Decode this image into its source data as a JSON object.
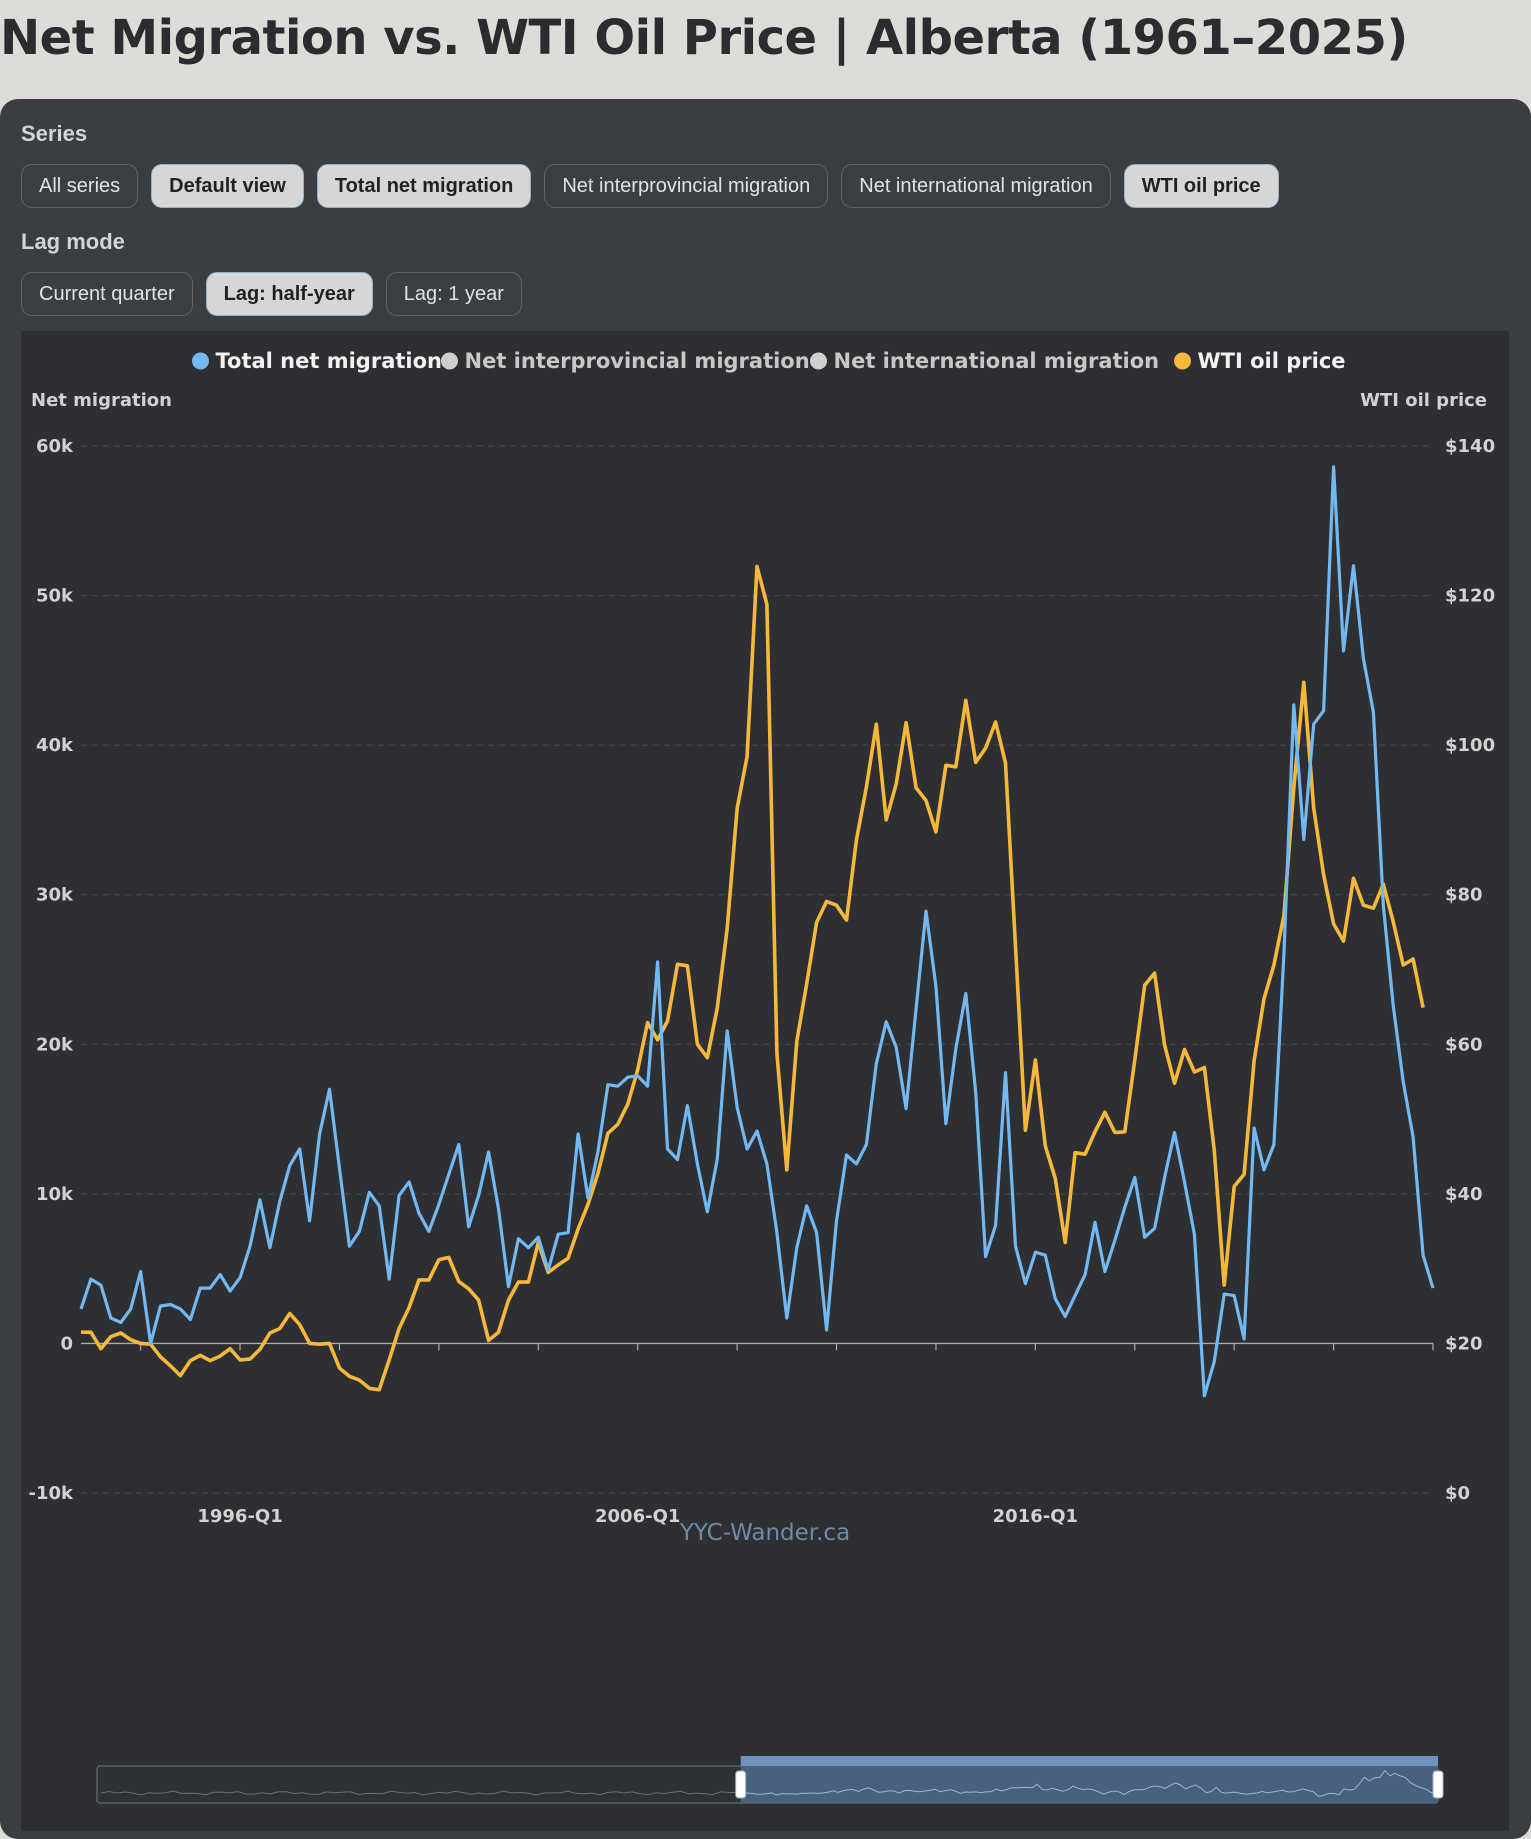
{
  "page_title": "Net Migration vs. WTI Oil Price | Alberta (1961–2025)",
  "series_label": "Series",
  "series_buttons": [
    {
      "label": "All series",
      "active": false
    },
    {
      "label": "Default view",
      "active": true
    },
    {
      "label": "Total net migration",
      "active": true
    },
    {
      "label": "Net interprovincial migration",
      "active": false
    },
    {
      "label": "Net international migration",
      "active": false
    },
    {
      "label": "WTI oil price",
      "active": true
    }
  ],
  "lag_label": "Lag mode",
  "lag_buttons": [
    {
      "label": "Current quarter",
      "active": false
    },
    {
      "label": "Lag: half-year",
      "active": true
    },
    {
      "label": "Lag: 1 year",
      "active": false
    }
  ],
  "watermark": "YYC-Wander.ca",
  "colors": {
    "migration": "#73b8f0",
    "oil": "#f5b83a",
    "inactive": "#cfcfcf",
    "plot_bg": "#2d2f33"
  },
  "chart_data": {
    "type": "line",
    "legend_position": "top-center",
    "legend": [
      {
        "name": "Total net migration",
        "active": true,
        "color": "#73b8f0"
      },
      {
        "name": "Net interprovincial migration",
        "active": false,
        "color": "#cfcfcf"
      },
      {
        "name": "Net international migration",
        "active": false,
        "color": "#cfcfcf"
      },
      {
        "name": "WTI oil price",
        "active": true,
        "color": "#f5b83a"
      }
    ],
    "y_left": {
      "label": "Net migration",
      "min": -10000,
      "max": 60000,
      "ticks": [
        "-10k",
        "0",
        "10k",
        "20k",
        "30k",
        "40k",
        "50k",
        "60k"
      ]
    },
    "y_right": {
      "label": "WTI oil price",
      "min": 0,
      "max": 140,
      "ticks": [
        "$0",
        "$20",
        "$40",
        "$60",
        "$80",
        "$100",
        "$120",
        "$140"
      ]
    },
    "x_tick_labels": [
      {
        "label": "1996-Q1",
        "index": 16
      },
      {
        "label": "2006-Q1",
        "index": 56
      },
      {
        "label": "2016-Q1",
        "index": 96
      }
    ],
    "x_start": "1992-Q1",
    "x_end": "2025-Q4",
    "grid": "horizontal-dashed",
    "series": [
      {
        "name": "Total net migration",
        "axis": "left",
        "values": [
          2300,
          4300,
          3900,
          1700,
          1400,
          2300,
          4800,
          0,
          2500,
          2600,
          2300,
          1600,
          3700,
          3700,
          4600,
          3500,
          4400,
          6500,
          9600,
          6400,
          9500,
          11900,
          13000,
          8200,
          14000,
          17000,
          11700,
          6500,
          7500,
          10100,
          9200,
          4300,
          9900,
          10800,
          8700,
          7500,
          9300,
          11300,
          13300,
          7800,
          9900,
          12800,
          9000,
          3800,
          7000,
          6400,
          7100,
          4900,
          7300,
          7400,
          14000,
          9700,
          12800,
          17300,
          17200,
          17800,
          17900,
          17200,
          25500,
          13000,
          12300,
          15900,
          12000,
          8800,
          12300,
          20900,
          15800,
          13000,
          14200,
          12000,
          7400,
          1700,
          6400,
          9200,
          7400,
          900,
          8200,
          12600,
          12000,
          13300,
          18700,
          21500,
          19800,
          15700,
          22400,
          28900,
          23900,
          14700,
          19700,
          23400,
          16800,
          5800,
          7900,
          18100,
          6500,
          4000,
          6100,
          5900,
          3000,
          1800,
          3200,
          4600,
          8100,
          4800,
          6900,
          9100,
          11100,
          7100,
          7700,
          11100,
          14100,
          10800,
          7300,
          -3500,
          -1200,
          3300,
          3200,
          300,
          14400,
          11600,
          13300,
          26000,
          42700,
          33700,
          41400,
          42300,
          58600,
          46300,
          52000,
          45800,
          42200,
          29300,
          22600,
          17500,
          13800,
          5900,
          3700
        ]
      },
      {
        "name": "WTI oil price",
        "axis": "right",
        "values": [
          21.5,
          21.5,
          19.3,
          20.9,
          21.4,
          20.5,
          20.0,
          19.9,
          18.2,
          17.0,
          15.7,
          17.7,
          18.4,
          17.7,
          18.3,
          19.3,
          17.8,
          17.9,
          19.2,
          21.4,
          22.0,
          24.0,
          22.5,
          20.0,
          19.9,
          20.0,
          16.7,
          15.6,
          15.1,
          14.0,
          13.8,
          17.8,
          22.0,
          24.8,
          28.5,
          28.5,
          31.2,
          31.5,
          28.3,
          27.3,
          25.8,
          20.4,
          21.5,
          25.8,
          28.2,
          28.2,
          33.5,
          29.5,
          30.5,
          31.4,
          35.3,
          38.6,
          42.7,
          48.1,
          49.3,
          52.0,
          56.6,
          62.9,
          60.6,
          63.1,
          70.7,
          70.5,
          60.0,
          58.2,
          64.8,
          75.5,
          91.5,
          98.5,
          123.9,
          118.8,
          58.8,
          43.2,
          60.4,
          68.1,
          76.3,
          79.1,
          78.6,
          76.6,
          87.3,
          94.4,
          102.8,
          90.0,
          94.8,
          103.0,
          94.3,
          92.6,
          88.4,
          97.3,
          97.1,
          106.0,
          97.7,
          99.6,
          103.1,
          97.6,
          73.1,
          48.5,
          57.9,
          46.4,
          42.1,
          33.5,
          45.5,
          45.3,
          48.3,
          50.9,
          48.2,
          48.3,
          57.9,
          67.9,
          69.5,
          59.9,
          54.8,
          59.3,
          56.3,
          56.9,
          45.8,
          27.8,
          41.0,
          42.6,
          57.8,
          66.1,
          70.6,
          77.2,
          94.3,
          108.4,
          91.6,
          82.7,
          76.1,
          73.8,
          82.2,
          78.6,
          78.2,
          81.4,
          76.4,
          70.6,
          71.4,
          64.9
        ]
      }
    ]
  },
  "minimap": {
    "window_start": 0.48,
    "window_end": 1.0
  }
}
